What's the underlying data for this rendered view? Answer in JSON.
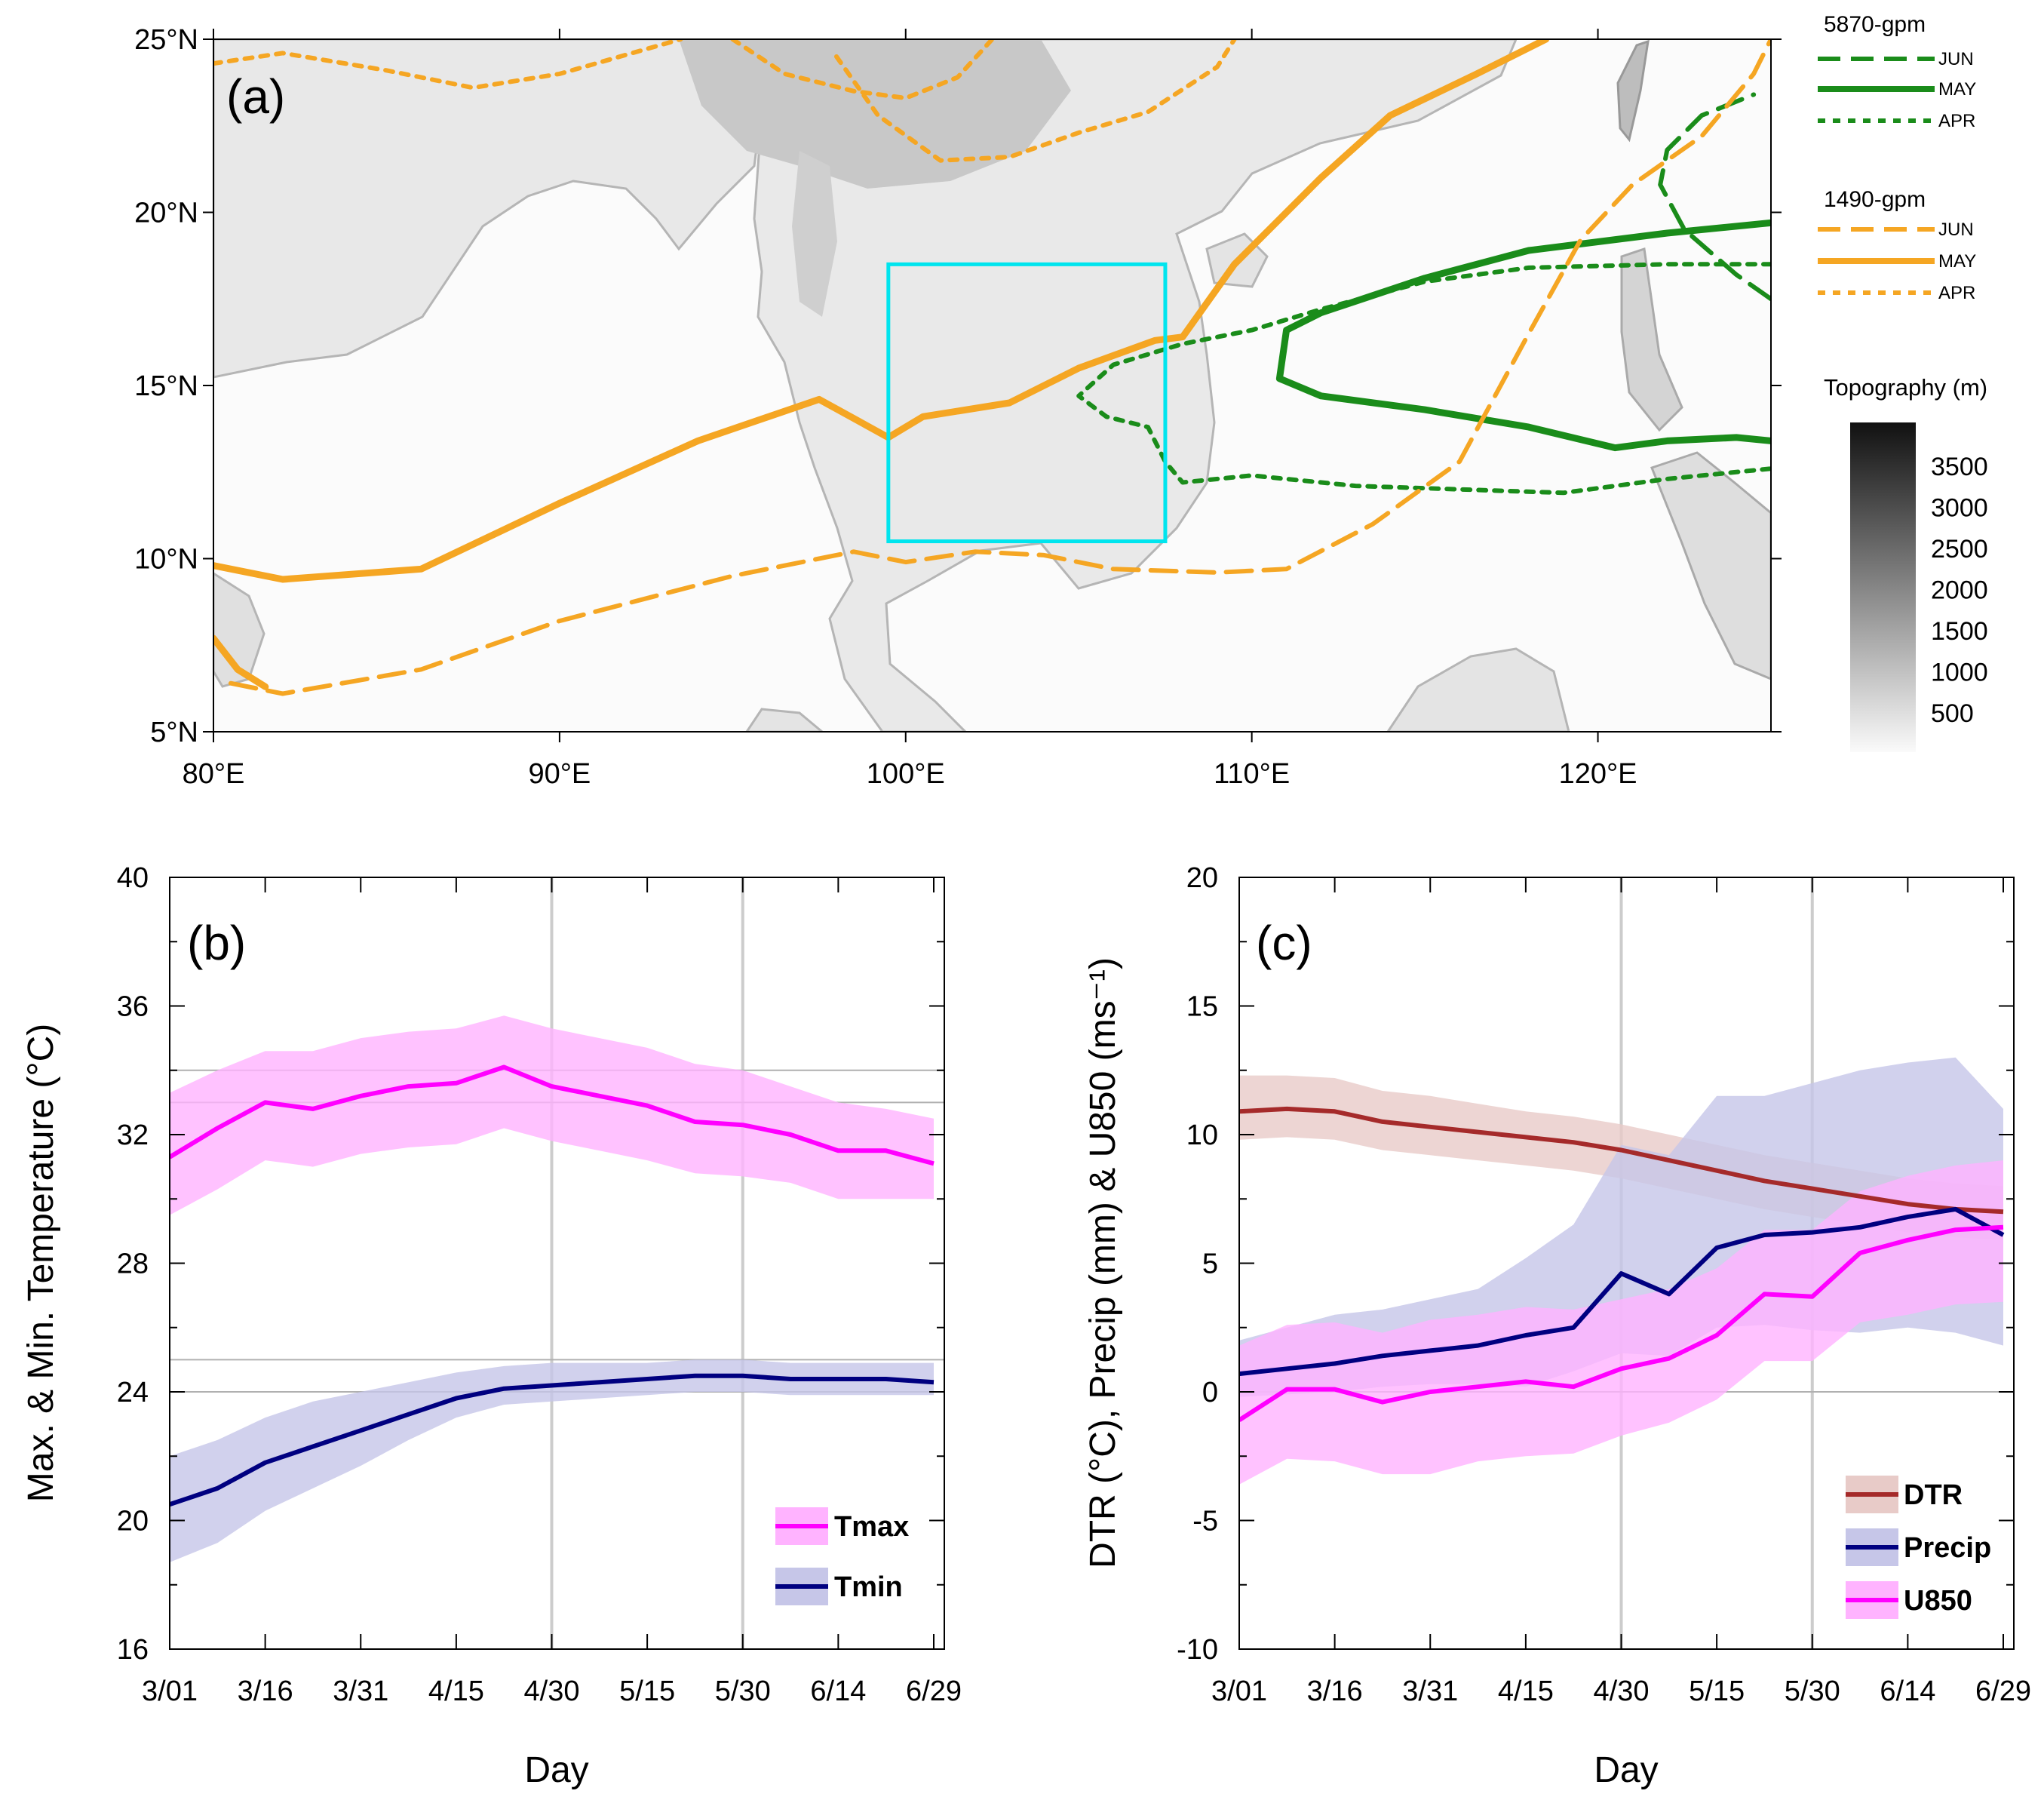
{
  "figure": {
    "panel_a": {
      "label": "(a)",
      "x_ticks": [
        {
          "value": 80,
          "label": "80°E"
        },
        {
          "value": 90,
          "label": "90°E"
        },
        {
          "value": 100,
          "label": "100°E"
        },
        {
          "value": 110,
          "label": "110°E"
        },
        {
          "value": 120,
          "label": "120°E"
        }
      ],
      "y_ticks": [
        {
          "value": 5,
          "label": "5°N"
        },
        {
          "value": 10,
          "label": "10°N"
        },
        {
          "value": 15,
          "label": "15°N"
        },
        {
          "value": 20,
          "label": "20°N"
        },
        {
          "value": 25,
          "label": "25°N"
        }
      ],
      "xlim": [
        80,
        125
      ],
      "ylim": [
        5,
        25
      ],
      "box": {
        "lon": [
          99.5,
          107.5
        ],
        "lat": [
          10.5,
          18.5
        ],
        "color": "#00e5ee"
      },
      "colors": {
        "green": "#1a8c1a",
        "orange": "#f5a623"
      },
      "legend_5870": {
        "title": "5870-gpm",
        "items": [
          "JUN",
          "MAY",
          "APR"
        ]
      },
      "legend_1490": {
        "title": "1490-gpm",
        "items": [
          "JUN",
          "MAY",
          "APR"
        ]
      },
      "topo_legend": {
        "title": "Topography (m)",
        "labels": [
          "3500",
          "3000",
          "2500",
          "2000",
          "1500",
          "1000",
          "500"
        ]
      },
      "contours": [
        {
          "group": "5870-gpm",
          "month": "MAY",
          "style": "solid",
          "points": [
            [
              125,
              19.7
            ],
            [
              122,
              19.4
            ],
            [
              118,
              18.9
            ],
            [
              115,
              18.1
            ],
            [
              112,
              17.1
            ],
            [
              111,
              16.6
            ],
            [
              110.8,
              15.2
            ],
            [
              112,
              14.7
            ],
            [
              115,
              14.3
            ],
            [
              118,
              13.8
            ],
            [
              120.5,
              13.2
            ],
            [
              122,
              13.4
            ],
            [
              124,
              13.5
            ],
            [
              125,
              13.4
            ]
          ]
        },
        {
          "group": "5870-gpm",
          "month": "APR",
          "style": "dotted",
          "points": [
            [
              125,
              18.5
            ],
            [
              122,
              18.5
            ],
            [
              118,
              18.4
            ],
            [
              115,
              18
            ],
            [
              112,
              17.2
            ],
            [
              110,
              16.6
            ],
            [
              108,
              16.2
            ],
            [
              106,
              15.6
            ],
            [
              105,
              14.7
            ],
            [
              105.8,
              14.1
            ],
            [
              107,
              13.8
            ],
            [
              107.5,
              12.8
            ],
            [
              108,
              12.2
            ],
            [
              110,
              12.4
            ],
            [
              113,
              12.1
            ],
            [
              116,
              12
            ],
            [
              119,
              11.9
            ],
            [
              122,
              12.3
            ],
            [
              125,
              12.6
            ]
          ]
        },
        {
          "group": "5870-gpm",
          "month": "JUN",
          "style": "dashed",
          "points": [
            [
              125,
              17.5
            ],
            [
              124,
              18.2
            ],
            [
              122.5,
              19.5
            ],
            [
              121.8,
              20.8
            ],
            [
              122,
              21.8
            ],
            [
              123,
              22.8
            ],
            [
              124.5,
              23.4
            ]
          ]
        },
        {
          "group": "1490-gpm",
          "month": "MAY",
          "style": "solid",
          "points": [
            [
              80,
              9.8
            ],
            [
              82,
              9.4
            ],
            [
              86,
              9.7
            ],
            [
              90,
              11.6
            ],
            [
              94,
              13.4
            ],
            [
              97.5,
              14.6
            ],
            [
              99.5,
              13.5
            ],
            [
              100.5,
              14.1
            ],
            [
              103,
              14.5
            ],
            [
              105,
              15.5
            ],
            [
              107.2,
              16.3
            ],
            [
              108,
              16.4
            ],
            [
              109.5,
              18.5
            ],
            [
              112,
              21
            ],
            [
              114,
              22.8
            ],
            [
              116.5,
              24
            ],
            [
              118.5,
              25
            ]
          ]
        },
        {
          "group": "1490-gpm",
          "month": "MAY",
          "style": "solid",
          "points": [
            [
              80,
              7.7
            ],
            [
              80.7,
              6.8
            ],
            [
              81.5,
              6.3
            ]
          ]
        },
        {
          "group": "1490-gpm",
          "month": "JUN",
          "style": "dashed",
          "points": [
            [
              80.5,
              6.4
            ],
            [
              82,
              6.1
            ],
            [
              86,
              6.8
            ],
            [
              90,
              8.2
            ],
            [
              95,
              9.5
            ],
            [
              98.5,
              10.2
            ],
            [
              100,
              9.9
            ],
            [
              102,
              10.2
            ],
            [
              104,
              10.1
            ],
            [
              106,
              9.7
            ],
            [
              109,
              9.6
            ],
            [
              111,
              9.7
            ],
            [
              113.5,
              11
            ],
            [
              116,
              12.8
            ],
            [
              118,
              16.5
            ],
            [
              119.5,
              19.2
            ],
            [
              121,
              20.8
            ],
            [
              123,
              22.2
            ],
            [
              124.5,
              24
            ],
            [
              125,
              25
            ]
          ]
        },
        {
          "group": "1490-gpm",
          "month": "APR",
          "style": "dotted",
          "points": [
            [
              80,
              24.3
            ],
            [
              82,
              24.6
            ],
            [
              85,
              24.1
            ],
            [
              87.5,
              23.6
            ],
            [
              90,
              24
            ],
            [
              93.5,
              25
            ]
          ]
        },
        {
          "group": "1490-gpm",
          "month": "APR",
          "style": "dotted",
          "points": [
            [
              95,
              25
            ],
            [
              96.5,
              24
            ],
            [
              98.5,
              23.5
            ],
            [
              100,
              23.3
            ],
            [
              101.5,
              23.9
            ],
            [
              102.5,
              25
            ]
          ]
        },
        {
          "group": "1490-gpm",
          "month": "APR",
          "style": "dotted",
          "points": [
            [
              98,
              24.5
            ],
            [
              99.2,
              22.8
            ],
            [
              101,
              21.5
            ],
            [
              103,
              21.6
            ],
            [
              105,
              22.3
            ],
            [
              107,
              22.9
            ],
            [
              109,
              24.2
            ],
            [
              109.5,
              25
            ]
          ]
        }
      ]
    },
    "panel_b": {
      "label": "(b)",
      "ylabel": "Max. & Min. Temperature (°C)",
      "xlabel": "Day",
      "x_ticks": [
        "3/01",
        "3/16",
        "3/31",
        "4/15",
        "4/30",
        "5/15",
        "5/30",
        "6/14",
        "6/29"
      ],
      "y_ticks": [
        "16",
        "20",
        "24",
        "28",
        "32",
        "36",
        "40"
      ],
      "ylim": [
        16,
        40
      ],
      "vlines": [
        "4/30",
        "5/30"
      ],
      "hlines": [
        34,
        33,
        25,
        24
      ],
      "legend": [
        "Tmax",
        "Tmin"
      ]
    },
    "panel_c": {
      "label": "(c)",
      "ylabel": "DTR (°C), Precip (mm) & U850 (ms⁻¹)",
      "xlabel": "Day",
      "x_ticks": [
        "3/01",
        "3/16",
        "3/31",
        "4/15",
        "4/30",
        "5/15",
        "5/30",
        "6/14",
        "6/29"
      ],
      "y_ticks": [
        "-10",
        "-5",
        "0",
        "5",
        "10",
        "15",
        "20"
      ],
      "ylim": [
        -10,
        20
      ],
      "vlines": [
        "4/30",
        "5/30"
      ],
      "hlines": [
        0
      ],
      "legend": [
        "DTR",
        "Precip",
        "U850"
      ]
    }
  },
  "chart_data": [
    {
      "type": "line",
      "panel": "b",
      "xlabel": "Day",
      "ylabel": "Max. & Min. Temperature (°C)",
      "ylim": [
        16,
        40
      ],
      "x": [
        "3/01",
        "3/08",
        "3/16",
        "3/23",
        "3/31",
        "4/07",
        "4/15",
        "4/22",
        "4/30",
        "5/07",
        "5/15",
        "5/22",
        "5/30",
        "6/07",
        "6/14",
        "6/21",
        "6/29"
      ],
      "series": [
        {
          "name": "Tmax",
          "color": "#ff00ff",
          "band_color": "#ffb3ff",
          "values": [
            31.3,
            32.2,
            33,
            32.8,
            33.2,
            33.5,
            33.6,
            34.1,
            33.5,
            33.2,
            32.9,
            32.4,
            32.3,
            32,
            31.5,
            31.5,
            31.1
          ],
          "lower": [
            29.5,
            30.3,
            31.2,
            31,
            31.4,
            31.6,
            31.7,
            32.2,
            31.8,
            31.5,
            31.2,
            30.8,
            30.7,
            30.5,
            30,
            30,
            30
          ],
          "upper": [
            33.3,
            34,
            34.6,
            34.6,
            35,
            35.2,
            35.3,
            35.7,
            35.3,
            35,
            34.7,
            34.2,
            34,
            33.5,
            33,
            32.8,
            32.5
          ]
        },
        {
          "name": "Tmin",
          "color": "#000080",
          "band_color": "#c6c6e8",
          "values": [
            20.5,
            21,
            21.8,
            22.3,
            22.8,
            23.3,
            23.8,
            24.1,
            24.2,
            24.3,
            24.4,
            24.5,
            24.5,
            24.4,
            24.4,
            24.4,
            24.3
          ],
          "lower": [
            18.7,
            19.3,
            20.3,
            21,
            21.7,
            22.5,
            23.2,
            23.6,
            23.7,
            23.8,
            23.9,
            24,
            24,
            23.9,
            23.9,
            23.9,
            23.9
          ],
          "upper": [
            22,
            22.5,
            23.2,
            23.7,
            24,
            24.3,
            24.6,
            24.8,
            24.9,
            24.9,
            24.9,
            25,
            25,
            24.9,
            24.9,
            24.9,
            24.9
          ]
        }
      ]
    },
    {
      "type": "line",
      "panel": "c",
      "xlabel": "Day",
      "ylabel": "DTR (°C), Precip (mm) & U850 (ms⁻¹)",
      "ylim": [
        -10,
        20
      ],
      "x": [
        "3/01",
        "3/08",
        "3/16",
        "3/23",
        "3/31",
        "4/07",
        "4/15",
        "4/22",
        "4/30",
        "5/07",
        "5/15",
        "5/22",
        "5/30",
        "6/07",
        "6/14",
        "6/21",
        "6/29"
      ],
      "series": [
        {
          "name": "DTR",
          "color": "#a52a2a",
          "band_color": "#e8cbc8",
          "values": [
            10.9,
            11,
            10.9,
            10.5,
            10.3,
            10.1,
            9.9,
            9.7,
            9.4,
            9,
            8.6,
            8.2,
            7.9,
            7.6,
            7.3,
            7.1,
            7
          ],
          "lower": [
            9.8,
            9.9,
            9.8,
            9.4,
            9.2,
            9,
            8.8,
            8.6,
            8.3,
            7.9,
            7.5,
            7.1,
            6.8,
            6.5,
            6.2,
            6,
            5.9
          ],
          "upper": [
            12.3,
            12.3,
            12.2,
            11.7,
            11.5,
            11.2,
            10.9,
            10.7,
            10.4,
            10,
            9.6,
            9.2,
            8.9,
            8.6,
            8.3,
            8.1,
            8
          ]
        },
        {
          "name": "Precip",
          "color": "#000080",
          "band_color": "#c6c6e8",
          "values": [
            0.7,
            0.9,
            1.1,
            1.4,
            1.6,
            1.8,
            2.2,
            2.5,
            4.6,
            3.8,
            5.6,
            6.1,
            6.2,
            6.4,
            6.8,
            7.1,
            6.1
          ],
          "lower": [
            -0.2,
            -0.1,
            0,
            0.2,
            0.3,
            0.3,
            0.2,
            0.8,
            1.5,
            1.4,
            2.5,
            2.6,
            2.4,
            2.3,
            2.5,
            2.3,
            1.8
          ],
          "upper": [
            2,
            2.5,
            3,
            3.2,
            3.6,
            4,
            5.2,
            6.5,
            9.6,
            9.2,
            11.5,
            11.5,
            12,
            12.5,
            12.8,
            13,
            11
          ]
        },
        {
          "name": "U850",
          "color": "#ff00ff",
          "band_color": "#ffb3ff",
          "values": [
            -1.1,
            0.1,
            0.1,
            -0.4,
            0,
            0.2,
            0.4,
            0.2,
            0.9,
            1.3,
            2.2,
            3.8,
            3.7,
            5.4,
            5.9,
            6.3,
            6.4
          ],
          "lower": [
            -3.6,
            -2.6,
            -2.7,
            -3.2,
            -3.2,
            -2.7,
            -2.5,
            -2.4,
            -1.7,
            -1.2,
            -0.3,
            1.2,
            1.2,
            2.7,
            3,
            3.4,
            3.5
          ],
          "upper": [
            1.8,
            2.6,
            2.7,
            2.3,
            2.8,
            3,
            3.3,
            3.2,
            3.6,
            4,
            4.8,
            6.3,
            6.3,
            7.8,
            8.4,
            8.8,
            9
          ]
        }
      ]
    }
  ]
}
